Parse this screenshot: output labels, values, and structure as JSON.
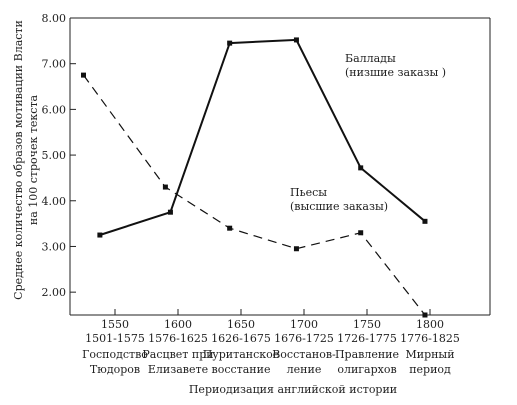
{
  "chart_data": {
    "type": "line",
    "title": "",
    "xlabel": "Периодизация английской истории",
    "ylabel_lines": [
      "Среднее количество образов мотивации Власти",
      "на 100 строчек текста"
    ],
    "ylim": [
      1.5,
      8.0
    ],
    "yticks": [
      {
        "value": 2.0,
        "label": "2.00"
      },
      {
        "value": 3.0,
        "label": "3.00"
      },
      {
        "value": 4.0,
        "label": "4.00"
      },
      {
        "value": 5.0,
        "label": "5.00"
      },
      {
        "value": 6.0,
        "label": "6.00"
      },
      {
        "value": 7.0,
        "label": "7.00"
      },
      {
        "value": 8.0,
        "label": "8.00"
      }
    ],
    "xlim": [
      1525,
      1812
    ],
    "x_ticks": [
      {
        "year": 1550,
        "label": "1550",
        "period": "1501-1575",
        "name": [
          "Господство",
          "Тюдоров"
        ]
      },
      {
        "year": 1600,
        "label": "1600",
        "period": "1576-1625",
        "name": [
          "Расцвет при",
          "Елизавете"
        ]
      },
      {
        "year": 1650,
        "label": "1650",
        "period": "1626-1675",
        "name": [
          "Пуританское",
          "восстание"
        ]
      },
      {
        "year": 1700,
        "label": "1700",
        "period": "1676-1725",
        "name": [
          "Восстанов-",
          "ление"
        ]
      },
      {
        "year": 1750,
        "label": "1750",
        "period": "1726-1775",
        "name": [
          "Правление",
          "олигархов"
        ]
      },
      {
        "year": 1800,
        "label": "1800",
        "period": "1776-1825",
        "name": [
          "Мирный",
          "период"
        ]
      }
    ],
    "series": [
      {
        "name_lines": [
          "Баллады",
          "(низшие заказы )"
        ],
        "style": "solid",
        "points": [
          [
            1538,
            3.25
          ],
          [
            1594,
            3.75
          ],
          [
            1641,
            7.45
          ],
          [
            1694,
            7.52
          ],
          [
            1745,
            4.72
          ],
          [
            1796,
            3.55
          ]
        ]
      },
      {
        "name_lines": [
          "Пьесы",
          "(высшие заказы)"
        ],
        "style": "dashed",
        "points": [
          [
            1525,
            6.75
          ],
          [
            1590,
            4.3
          ],
          [
            1641,
            3.4
          ],
          [
            1694,
            2.95
          ],
          [
            1745,
            3.3
          ],
          [
            1796,
            1.5
          ]
        ]
      }
    ]
  }
}
